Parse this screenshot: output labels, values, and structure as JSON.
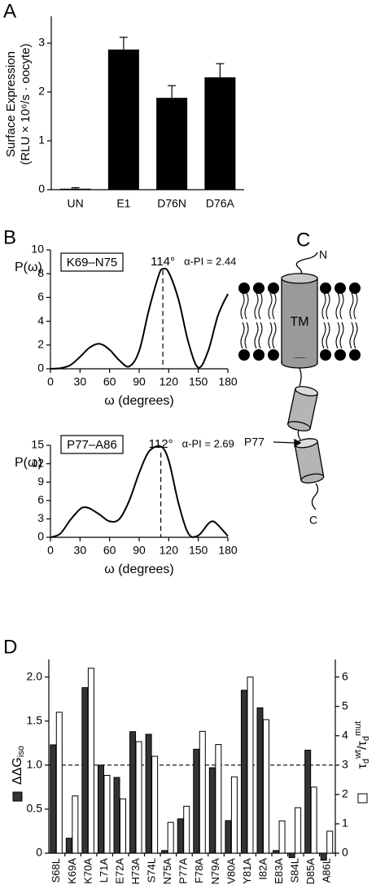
{
  "chart_data": [
    {
      "type": "bar",
      "panel": "A",
      "ylabel": [
        "Surface Expression",
        "(RLU × 10⁶/s · oocyte)"
      ],
      "categories": [
        "UN",
        "E1",
        "D76N",
        "D76A"
      ],
      "values": [
        0.02,
        2.87,
        1.88,
        2.3
      ],
      "errors": [
        0.02,
        0.25,
        0.25,
        0.28
      ],
      "color": "#000000",
      "ylim": [
        0,
        3.5
      ],
      "yticks": [
        0,
        1,
        2,
        3
      ]
    },
    {
      "type": "line",
      "panel": "B",
      "annotations": [
        "K69–N75",
        "114°",
        "α-PI = 2.44"
      ],
      "vline": 114,
      "xlabel": "ω (degrees)",
      "ylabel": "P(ω)",
      "x": [
        0,
        10,
        20,
        30,
        40,
        50,
        60,
        70,
        80,
        90,
        100,
        110,
        114,
        120,
        130,
        140,
        150,
        160,
        170,
        180
      ],
      "values": [
        0,
        0.05,
        0.3,
        1.0,
        1.8,
        2.1,
        1.6,
        0.7,
        0.2,
        1.5,
        5.0,
        7.9,
        8.4,
        8.1,
        5.8,
        2.2,
        0.1,
        1.5,
        4.5,
        6.3
      ],
      "color": "#000000",
      "xlim": [
        0,
        180
      ],
      "xticks": [
        0,
        30,
        60,
        90,
        120,
        150,
        180
      ],
      "ylim": [
        0,
        10
      ],
      "yticks": [
        0,
        2,
        4,
        6,
        8,
        10
      ]
    },
    {
      "type": "line",
      "annotations": [
        "P77–A86",
        "112°",
        "α-PI = 2.69"
      ],
      "vline": 112,
      "xlabel": "ω (degrees)",
      "ylabel": "P(ω)",
      "x": [
        0,
        10,
        20,
        30,
        35,
        40,
        50,
        60,
        70,
        80,
        90,
        100,
        112,
        120,
        130,
        140,
        150,
        160,
        165,
        170,
        180
      ],
      "values": [
        0,
        0.6,
        2.8,
        4.6,
        4.9,
        4.7,
        3.7,
        2.6,
        3.0,
        6.0,
        10.5,
        14.0,
        14.8,
        12.5,
        5.5,
        0.6,
        0.3,
        2.2,
        2.6,
        2.0,
        0.2
      ],
      "color": "#000000",
      "xlim": [
        0,
        180
      ],
      "xticks": [
        0,
        30,
        60,
        90,
        120,
        150,
        180
      ],
      "ylim": [
        0,
        15
      ],
      "yticks": [
        0,
        3,
        6,
        9,
        12,
        15
      ]
    },
    {
      "type": "bar",
      "panel": "D",
      "ylabel": [
        "ΔΔG",
        "iso"
      ],
      "y2label": [
        "τ",
        "d",
        "wt",
        "/τ",
        "d",
        "mut"
      ],
      "hline": 1,
      "categories": [
        "S68L",
        "K69A",
        "K70A",
        "L71A",
        "E72A",
        "H73A",
        "S74L",
        "N75A",
        "P77A",
        "F78A",
        "N79A",
        "V80A",
        "Y81A",
        "I82A",
        "E83A",
        "S84L",
        "D85A",
        "A86L"
      ],
      "series": [
        {
          "color": "#333333",
          "values": [
            1.23,
            0.17,
            1.88,
            1.0,
            0.86,
            1.38,
            1.35,
            0.03,
            0.39,
            1.18,
            0.97,
            0.37,
            1.85,
            1.65,
            0.03,
            -0.05,
            1.17,
            -0.08
          ]
        },
        {
          "color": "#ffffff",
          "axis": "y2",
          "values": [
            4.8,
            1.95,
            6.3,
            2.65,
            1.85,
            3.8,
            3.3,
            1.05,
            1.6,
            4.15,
            3.7,
            2.6,
            6.0,
            4.55,
            1.1,
            1.55,
            2.25,
            0.75
          ]
        }
      ],
      "ylim": [
        0,
        2.2
      ],
      "yticks": [
        0,
        0.5,
        {
          "value": 1,
          "label": "1.0"
        },
        1.5,
        {
          "value": 2,
          "label": "2.0"
        }
      ],
      "y2lim": [
        0,
        6.6
      ],
      "y2ticks": [
        0,
        1,
        2,
        3,
        4,
        5,
        6
      ]
    }
  ],
  "diagram": {
    "panel": "C",
    "labels": [
      "N",
      "TM",
      "P77",
      "C"
    ]
  }
}
